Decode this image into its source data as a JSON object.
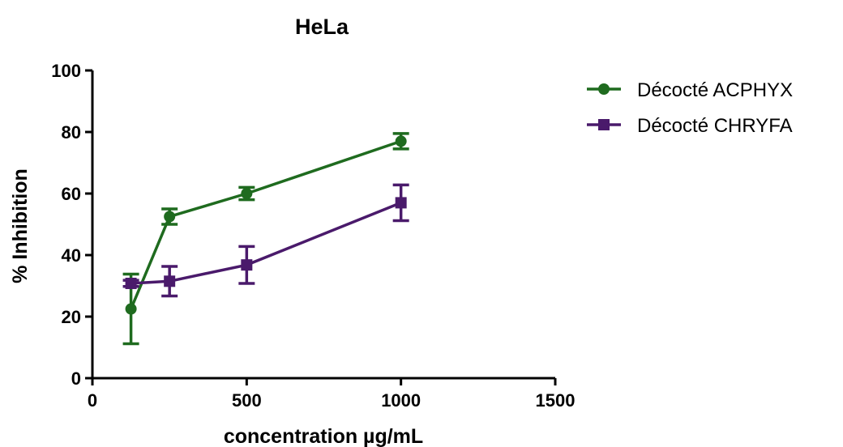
{
  "chart_data": {
    "type": "line",
    "title": "HeLa",
    "xlabel": "concentration µg/mL",
    "ylabel": "% Inhibition",
    "xlim": [
      0,
      1500
    ],
    "ylim": [
      0,
      100
    ],
    "xticks": [
      0,
      500,
      1000,
      1500
    ],
    "yticks": [
      0,
      20,
      40,
      60,
      80,
      100
    ],
    "grid": false,
    "legend_position": "top-right",
    "series": [
      {
        "name": "Décocté ACPHYX",
        "color": "#1f6b1f",
        "marker": "circle",
        "x": [
          125,
          250,
          500,
          1000
        ],
        "y": [
          22.5,
          52.5,
          60,
          77
        ],
        "err": [
          11.3,
          2.5,
          2.0,
          2.5
        ]
      },
      {
        "name": "Décocté CHRYFA",
        "color": "#4a1a6b",
        "marker": "square",
        "x": [
          125,
          250,
          500,
          1000
        ],
        "y": [
          30.8,
          31.5,
          36.8,
          57
        ],
        "err": [
          1.0,
          4.8,
          6.0,
          5.8
        ]
      }
    ]
  }
}
